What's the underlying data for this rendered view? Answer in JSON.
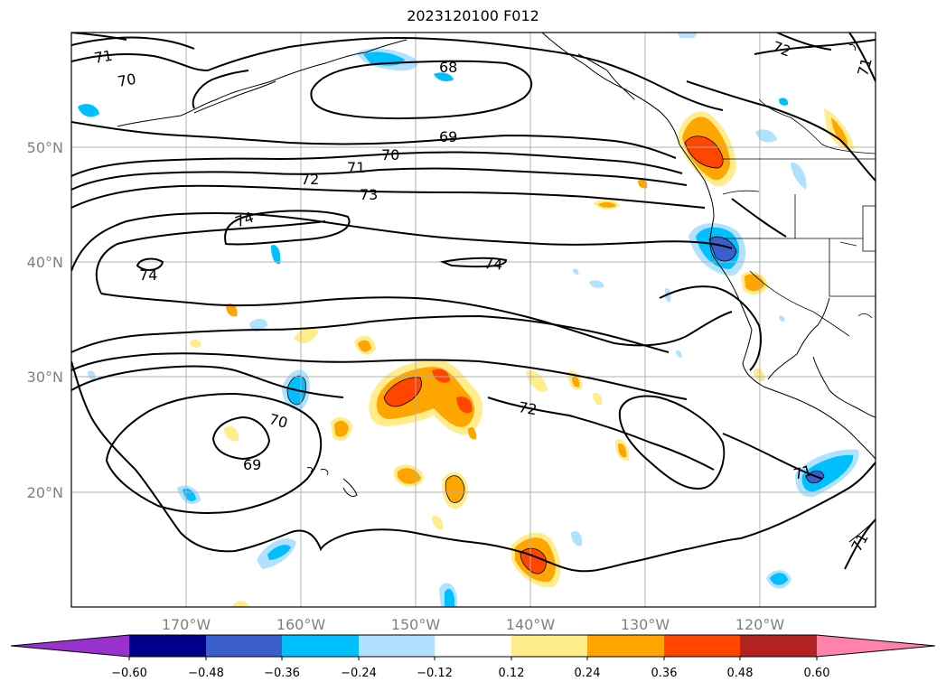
{
  "title": "2023120100 F012",
  "lat_labels": [
    "50°N",
    "40°N",
    "30°N",
    "20°N"
  ],
  "lon_labels": [
    "170°W",
    "160°W",
    "150°W",
    "140°W",
    "130°W",
    "120°W"
  ],
  "contour_labels": [
    {
      "id": "c71a",
      "text": "71"
    },
    {
      "id": "c70a",
      "text": "70"
    },
    {
      "id": "c68",
      "text": "68"
    },
    {
      "id": "c72a",
      "text": "72"
    },
    {
      "id": "c71b",
      "text": "71"
    },
    {
      "id": "c69a",
      "text": "69"
    },
    {
      "id": "c70b",
      "text": "70"
    },
    {
      "id": "c71c",
      "text": "71"
    },
    {
      "id": "c72b",
      "text": "72"
    },
    {
      "id": "c73",
      "text": "73"
    },
    {
      "id": "c74a",
      "text": "74"
    },
    {
      "id": "c74b",
      "text": "74"
    },
    {
      "id": "c74c",
      "text": "74"
    },
    {
      "id": "c70c",
      "text": "70"
    },
    {
      "id": "c69b",
      "text": "69"
    },
    {
      "id": "c72c",
      "text": "72"
    },
    {
      "id": "c71d",
      "text": "71"
    },
    {
      "id": "c71e",
      "text": "71"
    }
  ],
  "colorbar": {
    "ticks": [
      "−0.60",
      "−0.48",
      "−0.36",
      "−0.24",
      "−0.12",
      "0.12",
      "0.24",
      "0.36",
      "0.48",
      "0.60"
    ],
    "colors": [
      "#9932cc",
      "#00008b",
      "#3a5fcd",
      "#00bfff",
      "#b0e2ff",
      "#ffffff",
      "#ffec8b",
      "#ffa500",
      "#ff4500",
      "#b22222",
      "#ff82ab"
    ]
  },
  "legend_colors": {
    "light_yellow": "#ffec8b",
    "orange": "#ffa500",
    "orange_red": "#ff4500",
    "light_blue": "#b0e2ff",
    "deep_sky_blue": "#00bfff",
    "royal_blue": "#3a5fcd"
  }
}
